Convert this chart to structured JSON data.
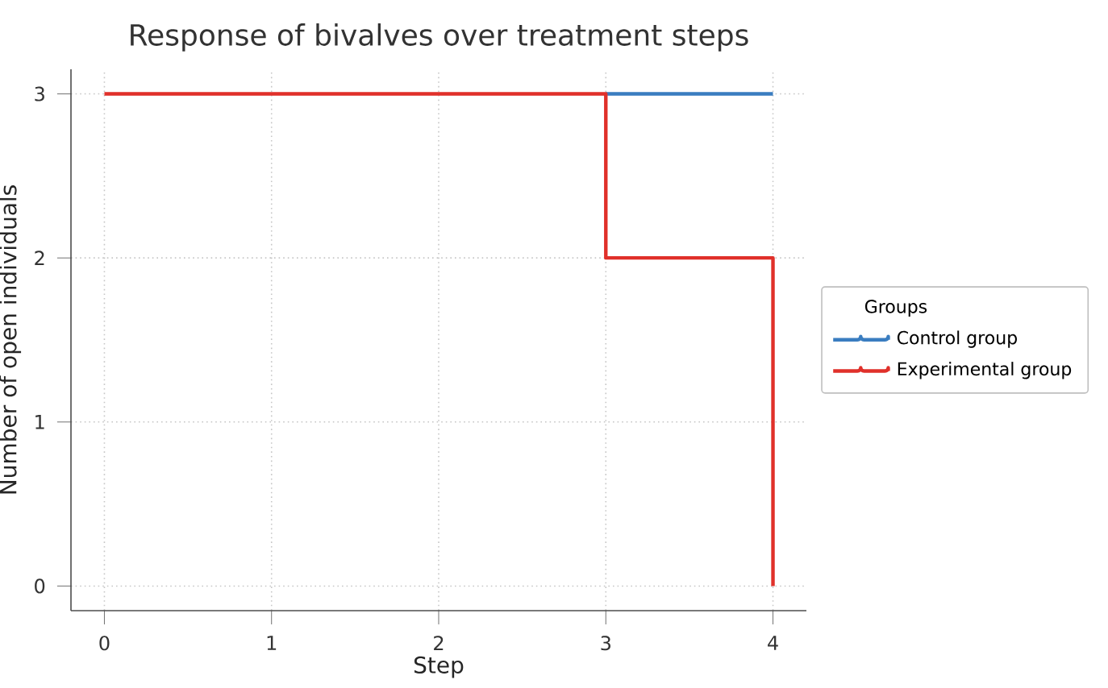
{
  "chart_data": {
    "type": "step",
    "title": "Response of bivalves over treatment steps",
    "xlabel": "Step",
    "ylabel": "Number of open individuals",
    "legend_title": "Groups",
    "x": [
      0,
      1,
      2,
      3,
      4
    ],
    "series": [
      {
        "name": "Control group",
        "color": "#3a7dc0",
        "values": [
          null,
          null,
          null,
          3,
          3
        ]
      },
      {
        "name": "Experimental group",
        "color": "#e0302a",
        "values": [
          3,
          3,
          3,
          2,
          0
        ]
      }
    ],
    "xlim": [
      -0.2,
      4.2
    ],
    "ylim": [
      -0.15,
      3.15
    ],
    "xticks": [
      0,
      1,
      2,
      3,
      4
    ],
    "yticks": [
      0,
      1,
      2,
      3
    ],
    "grid": true,
    "legend": "right",
    "line_style": "solid"
  }
}
